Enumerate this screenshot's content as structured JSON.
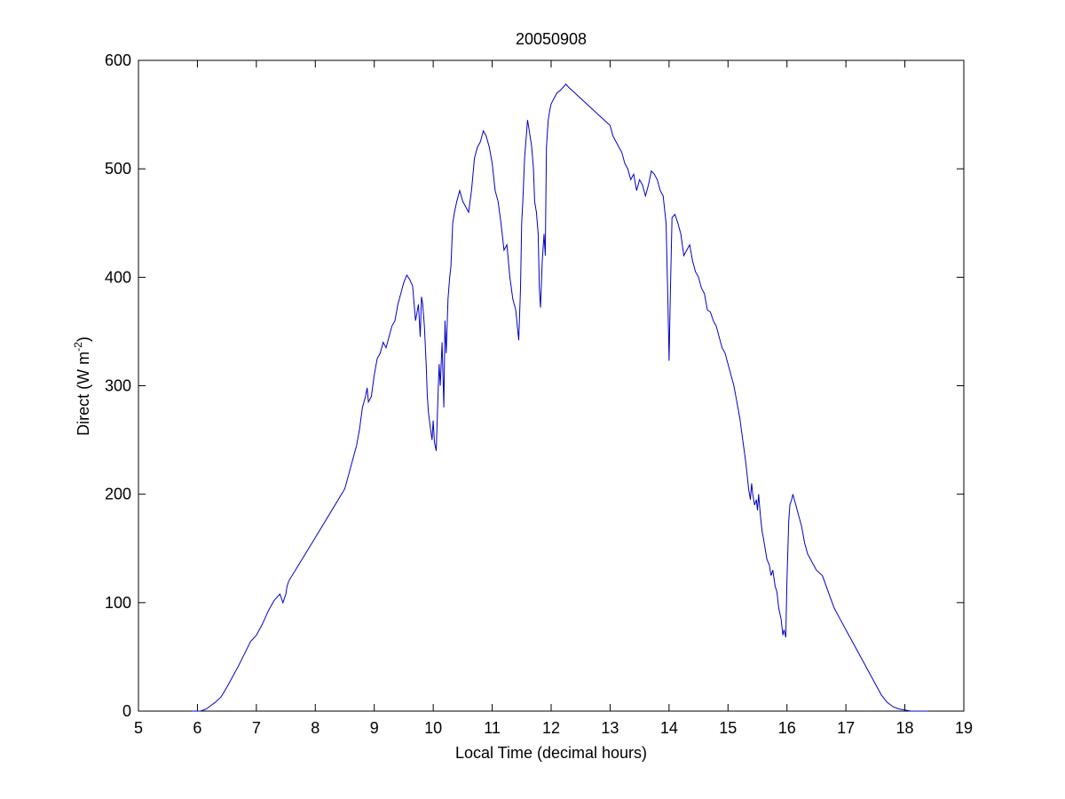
{
  "chart_data": {
    "type": "line",
    "title": "20050908",
    "xlabel": "Local Time (decimal hours)",
    "ylabel_main": "Direct (W m",
    "ylabel_sup": "-2",
    "ylabel_end": ")",
    "xlim": [
      5,
      19
    ],
    "ylim": [
      0,
      600
    ],
    "xticks": [
      5,
      6,
      7,
      8,
      9,
      10,
      11,
      12,
      13,
      14,
      15,
      16,
      17,
      18,
      19
    ],
    "yticks": [
      0,
      100,
      200,
      300,
      400,
      500,
      600
    ],
    "grid": false,
    "line_color": "#0000c8",
    "series": [
      {
        "x": [
          5.9,
          6.05,
          6.15,
          6.3,
          6.4,
          6.5,
          6.6,
          6.7,
          6.8,
          6.9,
          7.0,
          7.1,
          7.2,
          7.3,
          7.4,
          7.45,
          7.5,
          7.52,
          7.55,
          8.0,
          8.5,
          8.7,
          8.75,
          8.8,
          8.85,
          8.88,
          8.9,
          8.95,
          9.0,
          9.05,
          9.1,
          9.15,
          9.2,
          9.25,
          9.3,
          9.35,
          9.4,
          9.45,
          9.5,
          9.55,
          9.6,
          9.65,
          9.7,
          9.75,
          9.78,
          9.8,
          9.82,
          9.85,
          9.88,
          9.9,
          9.92,
          9.95,
          9.98,
          10.0,
          10.02,
          10.05,
          10.08,
          10.1,
          10.12,
          10.15,
          10.18,
          10.2,
          10.22,
          10.25,
          10.28,
          10.3,
          10.33,
          10.36,
          10.4,
          10.45,
          10.5,
          10.55,
          10.6,
          10.65,
          10.7,
          10.75,
          10.8,
          10.85,
          10.9,
          10.95,
          11.0,
          11.05,
          11.1,
          11.15,
          11.2,
          11.25,
          11.3,
          11.35,
          11.4,
          11.45,
          11.48,
          11.5,
          11.52,
          11.55,
          11.6,
          11.63,
          11.67,
          11.7,
          11.72,
          11.75,
          11.78,
          11.8,
          11.82,
          11.85,
          11.88,
          11.9,
          11.92,
          11.95,
          11.98,
          12.0,
          12.05,
          12.1,
          12.15,
          12.2,
          12.25,
          12.3,
          12.4,
          12.5,
          12.6,
          12.7,
          12.8,
          12.9,
          13.0,
          13.05,
          13.1,
          13.15,
          13.2,
          13.25,
          13.3,
          13.35,
          13.4,
          13.45,
          13.5,
          13.55,
          13.6,
          13.65,
          13.7,
          13.75,
          13.8,
          13.85,
          13.9,
          13.95,
          13.98,
          14.0,
          14.02,
          14.05,
          14.1,
          14.15,
          14.2,
          14.25,
          14.3,
          14.35,
          14.4,
          14.45,
          14.5,
          14.55,
          14.6,
          14.65,
          14.7,
          14.75,
          14.8,
          14.85,
          14.9,
          14.95,
          15.0,
          15.05,
          15.1,
          15.15,
          15.2,
          15.25,
          15.3,
          15.33,
          15.35,
          15.38,
          15.4,
          15.42,
          15.45,
          15.48,
          15.5,
          15.52,
          15.55,
          15.58,
          15.6,
          15.63,
          15.66,
          15.7,
          15.73,
          15.76,
          15.8,
          15.83,
          15.86,
          15.9,
          15.93,
          15.95,
          15.98,
          16.0,
          16.03,
          16.05,
          16.08,
          16.1,
          16.15,
          16.2,
          16.25,
          16.3,
          16.35,
          16.4,
          16.45,
          16.5,
          16.6,
          16.7,
          16.8,
          16.9,
          17.0,
          17.1,
          17.2,
          17.3,
          17.4,
          17.5,
          17.6,
          17.7,
          17.8,
          17.9,
          18.0,
          18.1,
          18.2,
          18.3,
          18.4
        ],
        "y": [
          0,
          0,
          2,
          8,
          13,
          22,
          32,
          42,
          53,
          64,
          70,
          80,
          92,
          102,
          108,
          100,
          108,
          115,
          120,
          160,
          205,
          245,
          260,
          280,
          290,
          298,
          285,
          290,
          310,
          325,
          330,
          340,
          335,
          345,
          355,
          360,
          375,
          385,
          395,
          402,
          398,
          392,
          360,
          375,
          345,
          382,
          376,
          355,
          320,
          290,
          275,
          262,
          250,
          268,
          248,
          240,
          290,
          320,
          300,
          340,
          280,
          360,
          330,
          380,
          400,
          410,
          450,
          460,
          470,
          480,
          470,
          465,
          460,
          480,
          510,
          520,
          525,
          535,
          530,
          520,
          505,
          480,
          470,
          450,
          425,
          430,
          400,
          380,
          370,
          342,
          390,
          450,
          470,
          510,
          545,
          535,
          520,
          500,
          470,
          460,
          440,
          390,
          372,
          415,
          440,
          420,
          520,
          545,
          555,
          560,
          565,
          570,
          572,
          575,
          578,
          575,
          570,
          565,
          560,
          555,
          550,
          545,
          540,
          530,
          525,
          520,
          515,
          505,
          500,
          490,
          495,
          480,
          490,
          485,
          475,
          485,
          498,
          495,
          490,
          480,
          475,
          450,
          380,
          323,
          380,
          455,
          458,
          450,
          440,
          420,
          425,
          430,
          415,
          405,
          400,
          390,
          385,
          370,
          368,
          360,
          355,
          345,
          335,
          330,
          320,
          310,
          300,
          285,
          270,
          250,
          230,
          215,
          205,
          195,
          210,
          200,
          190,
          195,
          185,
          200,
          180,
          165,
          160,
          150,
          140,
          135,
          125,
          130,
          115,
          110,
          95,
          85,
          70,
          75,
          68,
          120,
          175,
          190,
          195,
          200,
          190,
          180,
          170,
          155,
          145,
          140,
          135,
          130,
          125,
          110,
          95,
          85,
          75,
          65,
          55,
          45,
          35,
          25,
          15,
          8,
          4,
          2,
          1,
          0,
          0,
          0,
          0
        ]
      }
    ]
  }
}
